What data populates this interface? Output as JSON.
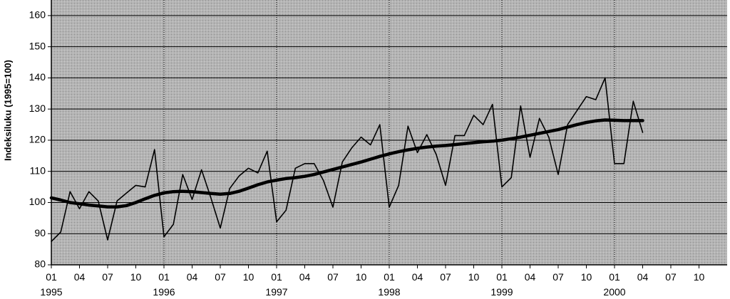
{
  "chart_data": {
    "type": "line",
    "ylabel": "Indeksiluku (1995=100)",
    "ylim": [
      80,
      165
    ],
    "yticks": [
      80,
      90,
      100,
      110,
      120,
      130,
      140,
      150,
      160
    ],
    "x_range": [
      "1995-01",
      "2000-12"
    ],
    "month_ticks": [
      "01",
      "04",
      "07",
      "10"
    ],
    "year_ticks": [
      "1995",
      "1996",
      "1997",
      "1998",
      "1999",
      "2000"
    ],
    "grid": true,
    "plot_background": "#b4b4b4",
    "series": [
      {
        "style": "thin",
        "start": "1995-01",
        "values": [
          87.5,
          90.5,
          103.5,
          98.0,
          103.5,
          100.5,
          88.0,
          100.5,
          103.0,
          105.5,
          105.0,
          117.0,
          89.0,
          93.0,
          109.0,
          101.0,
          110.5,
          101.5,
          91.8,
          104.5,
          108.5,
          111.0,
          109.5,
          116.5,
          93.8,
          97.5,
          111.0,
          112.5,
          112.5,
          107.0,
          98.5,
          113.0,
          117.5,
          121.0,
          118.5,
          125.0,
          98.5,
          105.5,
          124.5,
          116.0,
          121.8,
          115.5,
          105.5,
          121.5,
          121.5,
          128.0,
          125.0,
          131.5,
          105.0,
          108.0,
          131.0,
          114.5,
          127.0,
          121.0,
          109.0,
          125.0,
          129.5,
          134.0,
          133.0,
          140.0,
          112.5,
          112.5,
          132.5,
          122.5
        ]
      },
      {
        "style": "thick",
        "start": "1995-01",
        "values": [
          101.5,
          100.8,
          100.0,
          99.6,
          99.2,
          98.9,
          98.6,
          98.6,
          99.0,
          100.0,
          101.2,
          102.3,
          103.1,
          103.5,
          103.6,
          103.5,
          103.2,
          102.9,
          102.7,
          102.9,
          103.6,
          104.6,
          105.7,
          106.6,
          107.2,
          107.7,
          108.0,
          108.4,
          109.0,
          109.8,
          110.6,
          111.4,
          112.2,
          113.0,
          113.9,
          114.8,
          115.6,
          116.3,
          116.9,
          117.4,
          117.8,
          118.1,
          118.3,
          118.6,
          118.9,
          119.2,
          119.5,
          119.7,
          120.0,
          120.5,
          121.0,
          121.6,
          122.2,
          122.8,
          123.4,
          124.2,
          125.0,
          125.7,
          126.2,
          126.5,
          126.4,
          126.3,
          126.3,
          126.3
        ]
      }
    ]
  }
}
